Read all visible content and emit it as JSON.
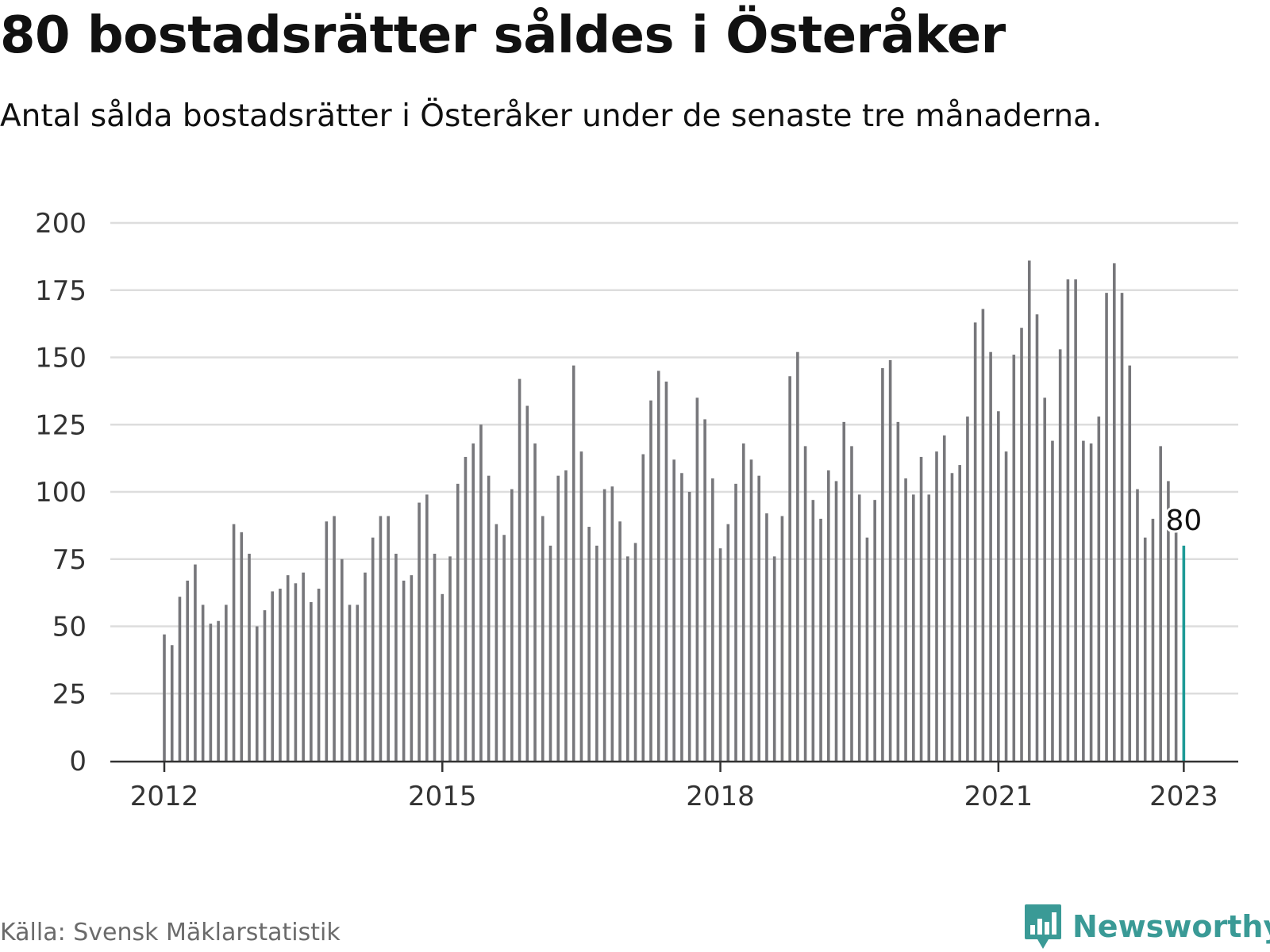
{
  "title": "80 bostadsrätter såldes i Österåker",
  "subtitle": "Antal sålda bostadsrätter i Österåker under de senaste tre månaderna.",
  "source": "Källa: Svensk Mäklarstatistik",
  "brand": {
    "name": "Newsworthy",
    "icon": "newsworthy-logo-icon",
    "color": "#3a9a96"
  },
  "colors": {
    "bar": "#77777b",
    "highlight": "#1d9a96",
    "grid": "#dddddd",
    "axis": "#333333"
  },
  "chart_data": {
    "type": "bar",
    "title": "80 bostadsrätter såldes i Österåker",
    "xlabel": "",
    "ylabel": "",
    "ylim": [
      0,
      200
    ],
    "yticks": [
      0,
      25,
      50,
      75,
      100,
      125,
      150,
      175,
      200
    ],
    "xticks": [
      "2012",
      "2015",
      "2018",
      "2021",
      "2023"
    ],
    "grid": true,
    "legend": "none",
    "first_month": "2012-01",
    "values": [
      47,
      43,
      61,
      67,
      73,
      58,
      51,
      52,
      58,
      88,
      85,
      77,
      50,
      56,
      63,
      64,
      69,
      66,
      70,
      59,
      64,
      89,
      91,
      75,
      58,
      58,
      70,
      83,
      91,
      91,
      77,
      67,
      69,
      96,
      99,
      77,
      62,
      76,
      103,
      113,
      118,
      125,
      106,
      88,
      84,
      101,
      142,
      132,
      118,
      91,
      80,
      106,
      108,
      147,
      115,
      87,
      80,
      101,
      102,
      89,
      76,
      81,
      114,
      134,
      145,
      141,
      112,
      107,
      100,
      135,
      127,
      105,
      79,
      88,
      103,
      118,
      112,
      106,
      92,
      76,
      91,
      143,
      152,
      117,
      97,
      90,
      108,
      104,
      126,
      117,
      99,
      83,
      97,
      146,
      149,
      126,
      105,
      99,
      113,
      99,
      115,
      121,
      107,
      110,
      128,
      163,
      168,
      152,
      130,
      115,
      151,
      161,
      186,
      166,
      135,
      119,
      153,
      179,
      179,
      119,
      118,
      128,
      174,
      185,
      174,
      147,
      101,
      83,
      90,
      117,
      104,
      85,
      80
    ],
    "highlight_label": "80"
  }
}
